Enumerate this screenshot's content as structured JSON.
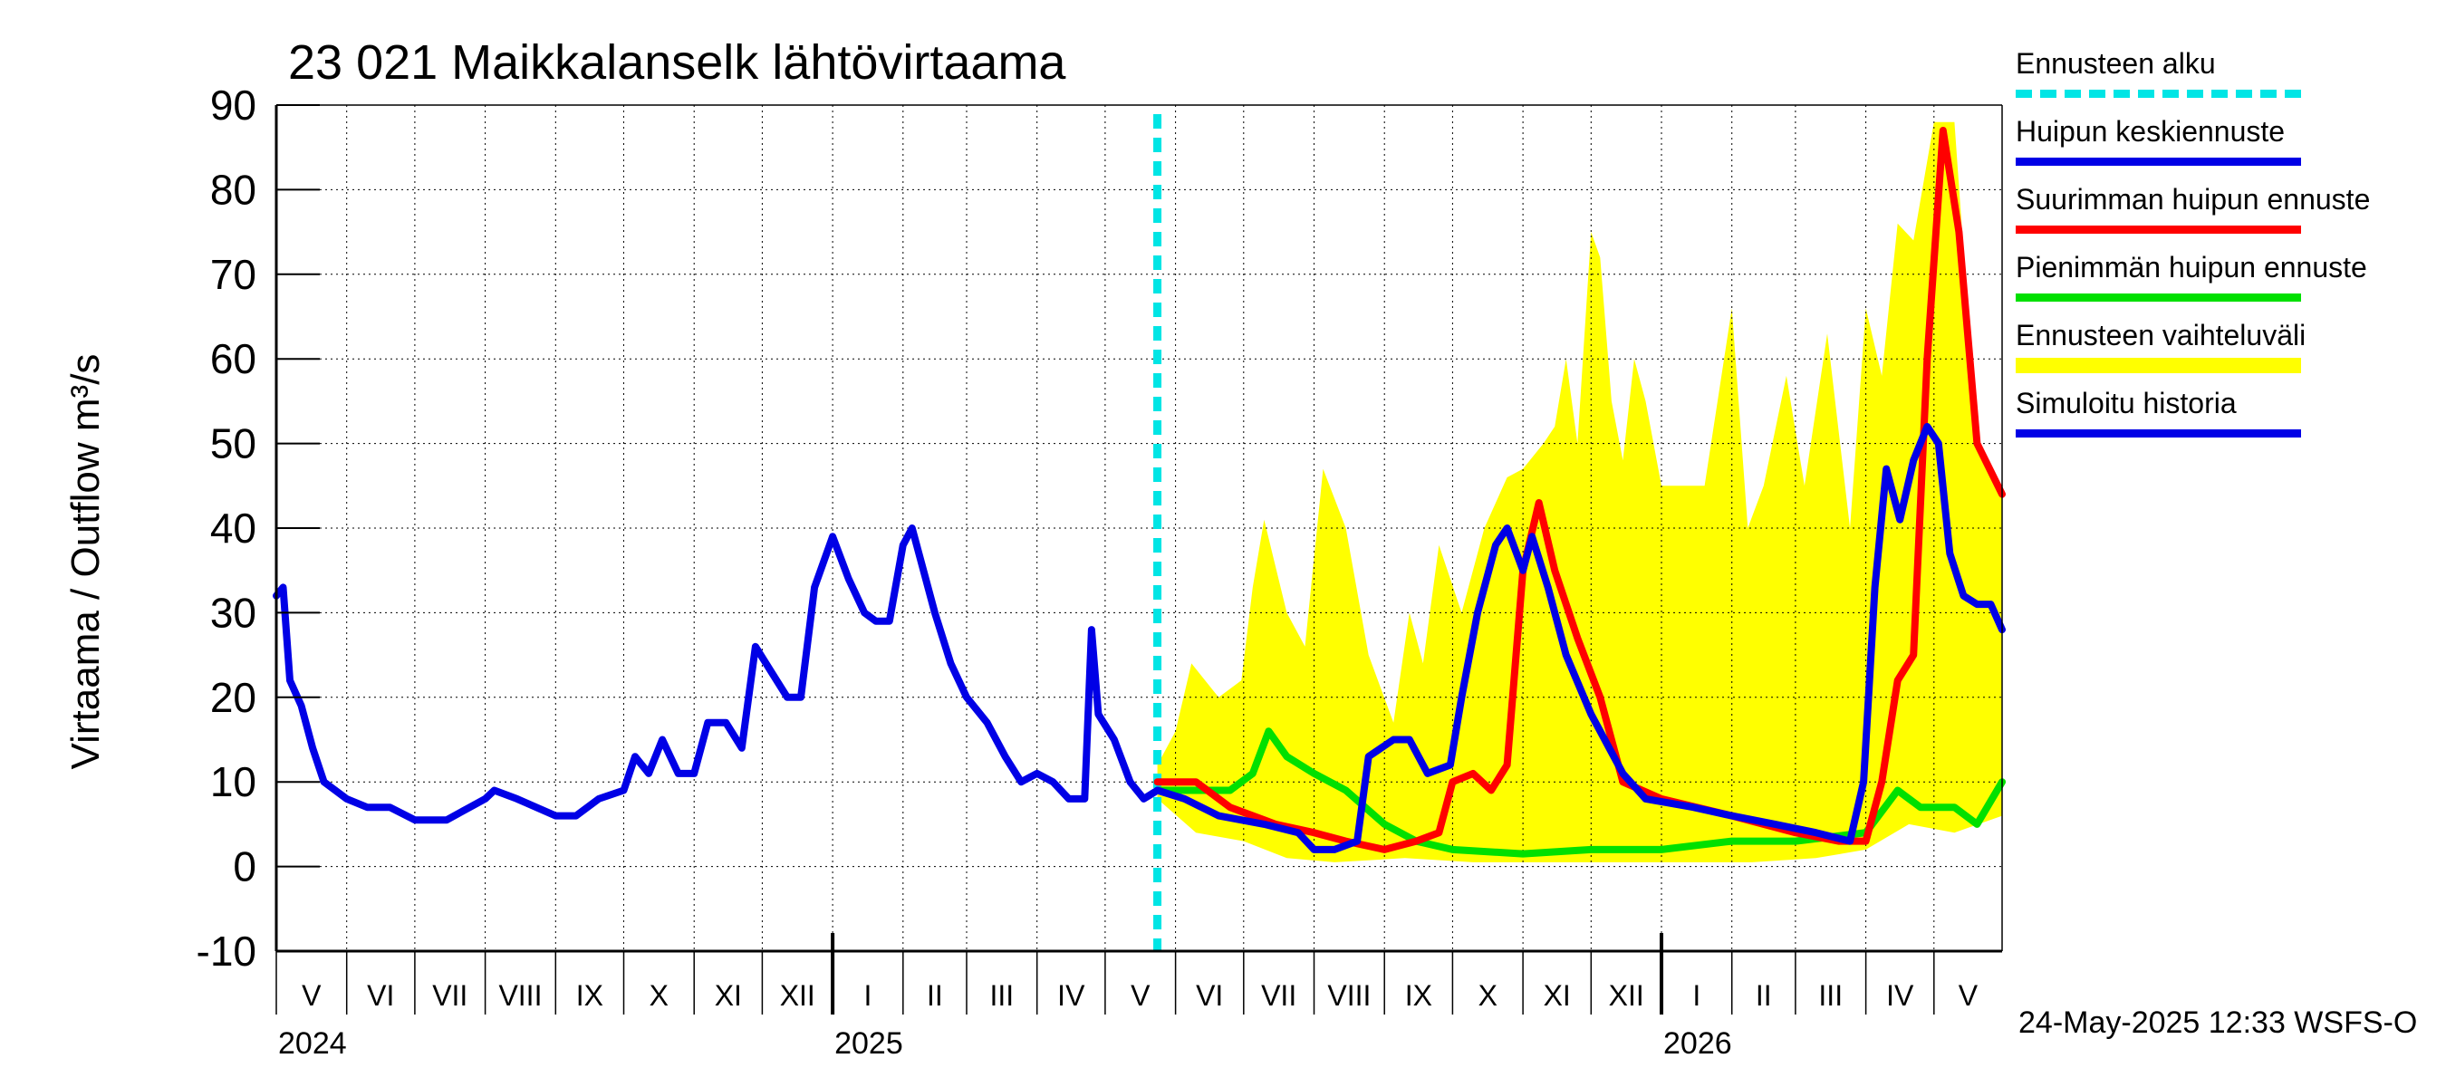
{
  "title": "23 021 Maikkalanselk lähtövirtaama",
  "footer": "24-May-2025 12:33 WSFS-O",
  "legend": [
    {
      "label": "Ennusteen alku",
      "color": "#00e5e5",
      "style": "dashed"
    },
    {
      "label": "Huipun keskiennuste",
      "color": "#0000e6",
      "style": "line"
    },
    {
      "label": "Suurimman huipun ennuste",
      "color": "#ff0000",
      "style": "line"
    },
    {
      "label": "Pienimmän huipun ennuste",
      "color": "#00e000",
      "style": "line"
    },
    {
      "label": "Ennusteen vaihteluväli",
      "color": "#ffff00",
      "style": "band"
    },
    {
      "label": "Simuloitu historia",
      "color": "#0000e6",
      "style": "line"
    }
  ],
  "chart_data": {
    "type": "line",
    "title": "23 021 Maikkalanselk lähtövirtaama",
    "ylabel": "Virtaama / Outflow    m³/s",
    "ylim": [
      -10,
      90
    ],
    "yticks": [
      -10,
      0,
      10,
      20,
      30,
      40,
      50,
      60,
      70,
      80,
      90
    ],
    "xlim": [
      "2024-05-01",
      "2026-05-31"
    ],
    "grid": true,
    "legend_position": "right",
    "forecast_start": "2025-05-24",
    "month_labels": [
      {
        "label": "V",
        "date": "2024-05-01"
      },
      {
        "label": "VI",
        "date": "2024-06-01"
      },
      {
        "label": "VII",
        "date": "2024-07-01"
      },
      {
        "label": "VIII",
        "date": "2024-08-01"
      },
      {
        "label": "IX",
        "date": "2024-09-01"
      },
      {
        "label": "X",
        "date": "2024-10-01"
      },
      {
        "label": "XI",
        "date": "2024-11-01"
      },
      {
        "label": "XII",
        "date": "2024-12-01"
      },
      {
        "label": "I",
        "date": "2025-01-01"
      },
      {
        "label": "II",
        "date": "2025-02-01"
      },
      {
        "label": "III",
        "date": "2025-03-01"
      },
      {
        "label": "IV",
        "date": "2025-04-01"
      },
      {
        "label": "V",
        "date": "2025-05-01"
      },
      {
        "label": "VI",
        "date": "2025-06-01"
      },
      {
        "label": "VII",
        "date": "2025-07-01"
      },
      {
        "label": "VIII",
        "date": "2025-08-01"
      },
      {
        "label": "IX",
        "date": "2025-09-01"
      },
      {
        "label": "X",
        "date": "2025-10-01"
      },
      {
        "label": "XI",
        "date": "2025-11-01"
      },
      {
        "label": "XII",
        "date": "2025-12-01"
      },
      {
        "label": "I",
        "date": "2026-01-01"
      },
      {
        "label": "II",
        "date": "2026-02-01"
      },
      {
        "label": "III",
        "date": "2026-03-01"
      },
      {
        "label": "IV",
        "date": "2026-04-01"
      },
      {
        "label": "V",
        "date": "2026-05-01"
      }
    ],
    "year_labels": [
      {
        "label": "2024",
        "date": "2024-05-01"
      },
      {
        "label": "2025",
        "date": "2025-01-01"
      },
      {
        "label": "2026",
        "date": "2026-01-01"
      }
    ],
    "series": [
      {
        "name": "Simuloitu historia",
        "color": "#0000e6",
        "points": [
          [
            "2024-05-01",
            32
          ],
          [
            "2024-05-04",
            33
          ],
          [
            "2024-05-07",
            22
          ],
          [
            "2024-05-12",
            19
          ],
          [
            "2024-05-17",
            14
          ],
          [
            "2024-05-22",
            10
          ],
          [
            "2024-06-01",
            8
          ],
          [
            "2024-06-10",
            7
          ],
          [
            "2024-06-20",
            7
          ],
          [
            "2024-07-01",
            5.5
          ],
          [
            "2024-07-15",
            5.5
          ],
          [
            "2024-08-01",
            8
          ],
          [
            "2024-08-05",
            9
          ],
          [
            "2024-08-15",
            8
          ],
          [
            "2024-09-01",
            6
          ],
          [
            "2024-09-10",
            6
          ],
          [
            "2024-09-20",
            8
          ],
          [
            "2024-10-01",
            9
          ],
          [
            "2024-10-06",
            13
          ],
          [
            "2024-10-12",
            11
          ],
          [
            "2024-10-18",
            15
          ],
          [
            "2024-10-25",
            11
          ],
          [
            "2024-11-01",
            11
          ],
          [
            "2024-11-07",
            17
          ],
          [
            "2024-11-15",
            17
          ],
          [
            "2024-11-22",
            14
          ],
          [
            "2024-11-28",
            26
          ],
          [
            "2024-12-05",
            23
          ],
          [
            "2024-12-12",
            20
          ],
          [
            "2024-12-18",
            20
          ],
          [
            "2024-12-24",
            33
          ],
          [
            "2025-01-01",
            39
          ],
          [
            "2025-01-08",
            34
          ],
          [
            "2025-01-15",
            30
          ],
          [
            "2025-01-20",
            29
          ],
          [
            "2025-01-26",
            29
          ],
          [
            "2025-02-01",
            38
          ],
          [
            "2025-02-05",
            40
          ],
          [
            "2025-02-15",
            30
          ],
          [
            "2025-02-22",
            24
          ],
          [
            "2025-03-01",
            20
          ],
          [
            "2025-03-10",
            17
          ],
          [
            "2025-03-18",
            13
          ],
          [
            "2025-03-25",
            10
          ],
          [
            "2025-04-01",
            11
          ],
          [
            "2025-04-08",
            10
          ],
          [
            "2025-04-15",
            8
          ],
          [
            "2025-04-22",
            8
          ],
          [
            "2025-04-25",
            28
          ],
          [
            "2025-04-28",
            18
          ],
          [
            "2025-05-05",
            15
          ],
          [
            "2025-05-12",
            10
          ],
          [
            "2025-05-18",
            8
          ],
          [
            "2025-05-24",
            9
          ]
        ]
      },
      {
        "name": "Huipun keskiennuste",
        "color": "#0000e6",
        "points": [
          [
            "2025-05-24",
            9
          ],
          [
            "2025-06-05",
            8
          ],
          [
            "2025-06-20",
            6
          ],
          [
            "2025-07-10",
            5
          ],
          [
            "2025-07-25",
            4
          ],
          [
            "2025-08-01",
            2
          ],
          [
            "2025-08-10",
            2
          ],
          [
            "2025-08-20",
            3
          ],
          [
            "2025-08-25",
            13
          ],
          [
            "2025-09-05",
            15
          ],
          [
            "2025-09-12",
            15
          ],
          [
            "2025-09-20",
            11
          ],
          [
            "2025-09-30",
            12
          ],
          [
            "2025-10-05",
            20
          ],
          [
            "2025-10-12",
            30
          ],
          [
            "2025-10-20",
            38
          ],
          [
            "2025-10-25",
            40
          ],
          [
            "2025-11-01",
            35
          ],
          [
            "2025-11-05",
            39
          ],
          [
            "2025-11-12",
            33
          ],
          [
            "2025-11-20",
            25
          ],
          [
            "2025-12-01",
            18
          ],
          [
            "2025-12-15",
            11
          ],
          [
            "2025-12-25",
            8
          ],
          [
            "2026-01-15",
            7
          ],
          [
            "2026-02-01",
            6
          ],
          [
            "2026-02-20",
            5
          ],
          [
            "2026-03-10",
            4
          ],
          [
            "2026-03-25",
            3
          ],
          [
            "2026-03-31",
            10
          ],
          [
            "2026-04-05",
            33
          ],
          [
            "2026-04-10",
            47
          ],
          [
            "2026-04-16",
            41
          ],
          [
            "2026-04-22",
            48
          ],
          [
            "2026-04-28",
            52
          ],
          [
            "2026-05-03",
            50
          ],
          [
            "2026-05-08",
            37
          ],
          [
            "2026-05-14",
            32
          ],
          [
            "2026-05-20",
            31
          ],
          [
            "2026-05-26",
            31
          ],
          [
            "2026-05-31",
            28
          ]
        ]
      },
      {
        "name": "Suurimman huipun ennuste",
        "color": "#ff0000",
        "points": [
          [
            "2025-05-24",
            10
          ],
          [
            "2025-06-10",
            10
          ],
          [
            "2025-06-25",
            7
          ],
          [
            "2025-07-15",
            5
          ],
          [
            "2025-08-01",
            4
          ],
          [
            "2025-08-15",
            3
          ],
          [
            "2025-09-01",
            2
          ],
          [
            "2025-09-15",
            3
          ],
          [
            "2025-09-25",
            4
          ],
          [
            "2025-10-01",
            10
          ],
          [
            "2025-10-10",
            11
          ],
          [
            "2025-10-18",
            9
          ],
          [
            "2025-10-25",
            12
          ],
          [
            "2025-11-01",
            35
          ],
          [
            "2025-11-08",
            43
          ],
          [
            "2025-11-15",
            35
          ],
          [
            "2025-11-25",
            27
          ],
          [
            "2025-12-05",
            20
          ],
          [
            "2025-12-15",
            10
          ],
          [
            "2026-01-01",
            8
          ],
          [
            "2026-02-01",
            6
          ],
          [
            "2026-03-01",
            4
          ],
          [
            "2026-03-20",
            3
          ],
          [
            "2026-04-01",
            3
          ],
          [
            "2026-04-08",
            10
          ],
          [
            "2026-04-15",
            22
          ],
          [
            "2026-04-22",
            25
          ],
          [
            "2026-04-28",
            60
          ],
          [
            "2026-05-05",
            87
          ],
          [
            "2026-05-12",
            75
          ],
          [
            "2026-05-20",
            50
          ],
          [
            "2026-05-31",
            44
          ]
        ]
      },
      {
        "name": "Pienimmän huipun ennuste",
        "color": "#00e000",
        "points": [
          [
            "2025-05-24",
            9
          ],
          [
            "2025-06-10",
            9
          ],
          [
            "2025-06-25",
            9
          ],
          [
            "2025-07-05",
            11
          ],
          [
            "2025-07-12",
            16
          ],
          [
            "2025-07-20",
            13
          ],
          [
            "2025-08-01",
            11
          ],
          [
            "2025-08-15",
            9
          ],
          [
            "2025-09-01",
            5
          ],
          [
            "2025-09-15",
            3
          ],
          [
            "2025-10-01",
            2
          ],
          [
            "2025-11-01",
            1.5
          ],
          [
            "2025-12-01",
            2
          ],
          [
            "2026-01-01",
            2
          ],
          [
            "2026-02-01",
            3
          ],
          [
            "2026-03-01",
            3
          ],
          [
            "2026-04-01",
            4
          ],
          [
            "2026-04-15",
            9
          ],
          [
            "2026-04-25",
            7
          ],
          [
            "2026-05-10",
            7
          ],
          [
            "2026-05-20",
            5
          ],
          [
            "2026-05-31",
            10
          ]
        ]
      }
    ],
    "band": {
      "name": "Ennusteen vaihteluväli",
      "color": "#ffff00",
      "upper": [
        [
          "2025-05-24",
          12
        ],
        [
          "2025-06-01",
          16
        ],
        [
          "2025-06-08",
          24
        ],
        [
          "2025-06-20",
          20
        ],
        [
          "2025-06-30",
          22
        ],
        [
          "2025-07-05",
          33
        ],
        [
          "2025-07-10",
          41
        ],
        [
          "2025-07-20",
          30
        ],
        [
          "2025-07-28",
          26
        ],
        [
          "2025-08-05",
          47
        ],
        [
          "2025-08-15",
          40
        ],
        [
          "2025-08-25",
          25
        ],
        [
          "2025-09-05",
          17
        ],
        [
          "2025-09-12",
          30
        ],
        [
          "2025-09-18",
          24
        ],
        [
          "2025-09-25",
          38
        ],
        [
          "2025-10-05",
          30
        ],
        [
          "2025-10-15",
          40
        ],
        [
          "2025-10-25",
          46
        ],
        [
          "2025-11-01",
          47
        ],
        [
          "2025-11-10",
          50
        ],
        [
          "2025-11-15",
          52
        ],
        [
          "2025-11-20",
          60
        ],
        [
          "2025-11-25",
          50
        ],
        [
          "2025-12-01",
          75
        ],
        [
          "2025-12-05",
          72
        ],
        [
          "2025-12-10",
          55
        ],
        [
          "2025-12-15",
          48
        ],
        [
          "2025-12-20",
          60
        ],
        [
          "2025-12-25",
          55
        ],
        [
          "2026-01-01",
          45
        ],
        [
          "2026-01-10",
          45
        ],
        [
          "2026-01-20",
          45
        ],
        [
          "2026-02-01",
          66
        ],
        [
          "2026-02-08",
          40
        ],
        [
          "2026-02-15",
          45
        ],
        [
          "2026-02-25",
          58
        ],
        [
          "2026-03-05",
          45
        ],
        [
          "2026-03-15",
          63
        ],
        [
          "2026-03-25",
          40
        ],
        [
          "2026-04-01",
          66
        ],
        [
          "2026-04-08",
          58
        ],
        [
          "2026-04-15",
          76
        ],
        [
          "2026-04-22",
          74
        ],
        [
          "2026-05-01",
          88
        ],
        [
          "2026-05-10",
          88
        ],
        [
          "2026-05-20",
          50
        ],
        [
          "2026-05-31",
          44
        ]
      ],
      "lower": [
        [
          "2025-05-24",
          8
        ],
        [
          "2025-06-10",
          4
        ],
        [
          "2025-07-01",
          3
        ],
        [
          "2025-07-20",
          1
        ],
        [
          "2025-08-10",
          0.5
        ],
        [
          "2025-09-10",
          1
        ],
        [
          "2025-10-10",
          0.5
        ],
        [
          "2025-11-10",
          0.5
        ],
        [
          "2025-12-10",
          0.5
        ],
        [
          "2026-01-10",
          0.5
        ],
        [
          "2026-02-10",
          0.5
        ],
        [
          "2026-03-10",
          1
        ],
        [
          "2026-04-01",
          2
        ],
        [
          "2026-04-20",
          5
        ],
        [
          "2026-05-10",
          4
        ],
        [
          "2026-05-31",
          6
        ]
      ]
    }
  }
}
